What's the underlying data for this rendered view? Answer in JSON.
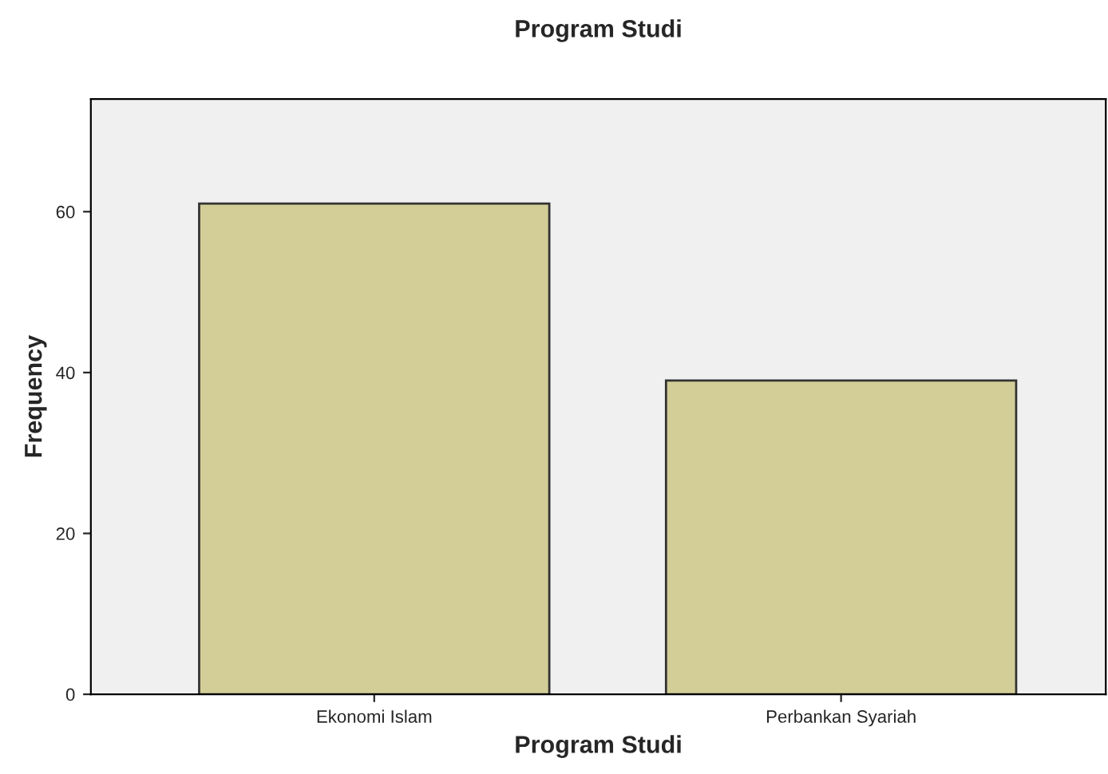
{
  "chart_data": {
    "type": "bar",
    "title": "Program Studi",
    "xlabel": "Program Studi",
    "ylabel": "Frequency",
    "categories": [
      "Ekonomi Islam",
      "Perbankan Syariah"
    ],
    "values": [
      61,
      39
    ],
    "color": "#d3ce97",
    "ylim": [
      0,
      74
    ],
    "yticks": [
      0,
      20,
      40,
      60
    ],
    "grid": false,
    "legend": false
  }
}
